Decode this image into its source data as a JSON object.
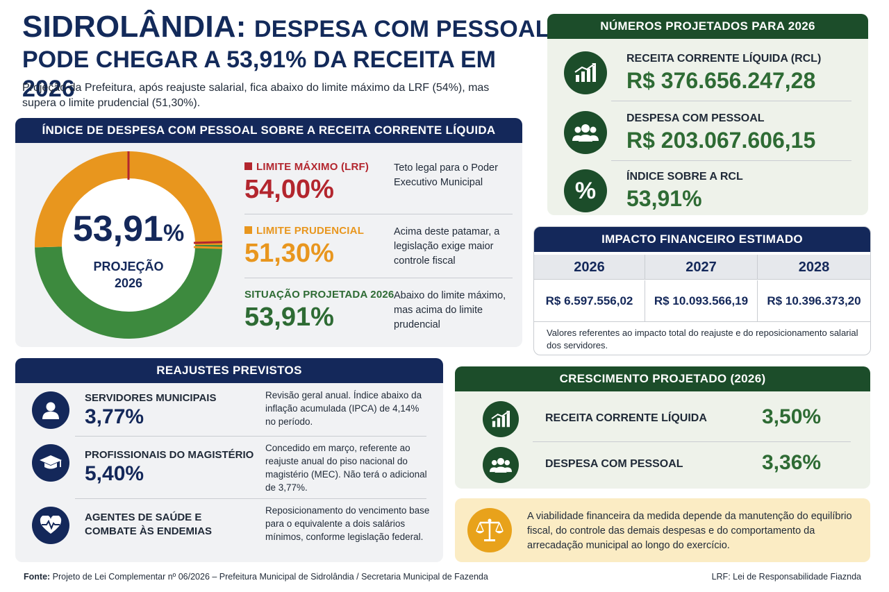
{
  "headline": {
    "city": "SIDROLÂNDIA:",
    "line1_rest": "DESPESA COM PESSOAL",
    "line2": "PODE CHEGAR A 53,91% DA RECEITA EM 2026"
  },
  "subtitle": "Projeção da Prefeitura, após reajuste salarial, fica abaixo do limite máximo da LRF (54%), mas supera o limite prudencial (51,30%).",
  "index_panel": {
    "title": "ÍNDICE DE DESPESA COM PESSOAL SOBRE A RECEITA CORRENTE LÍQUIDA",
    "donut": {
      "value": "53,91",
      "pct_sign": "%",
      "label_line1": "PROJEÇÃO",
      "label_line2": "2026",
      "projection_fraction": 0.5391,
      "prudential_fraction": 0.513,
      "max_fraction": 0.54
    },
    "limits": [
      {
        "name": "LIMITE MÁXIMO (LRF)",
        "value": "54,00%",
        "desc": "Teto legal para o Poder Executivo Municipal",
        "color": "#b3262e"
      },
      {
        "name": "LIMITE PRUDENCIAL",
        "value": "51,30%",
        "desc": "Acima deste patamar, a legislação exige maior controle fiscal",
        "color": "#e8961e"
      },
      {
        "name": "SITUAÇÃO PROJETADA 2026",
        "value": "53,91%",
        "desc": "Abaixo do limite máximo, mas acima do limite prudencial",
        "color": "#2e6b34"
      }
    ]
  },
  "projected": {
    "title": "NÚMEROS PROJETADOS PARA 2026",
    "items": [
      {
        "name": "RECEITA CORRENTE LÍQUIDA (RCL)",
        "value": "R$ 376.656.247,28",
        "icon": "chart-up-icon"
      },
      {
        "name": "DESPESA COM PESSOAL",
        "value": "R$ 203.067.606,15",
        "icon": "people-icon"
      },
      {
        "name": "ÍNDICE SOBRE A RCL",
        "value": "53,91%",
        "icon": "percent-icon",
        "glyph": "%"
      }
    ]
  },
  "impact": {
    "title": "IMPACTO FINANCEIRO ESTIMADO",
    "years": [
      "2026",
      "2027",
      "2028"
    ],
    "amounts": [
      "R$ 6.597.556,02",
      "R$ 10.093.566,19",
      "R$ 10.396.373,20"
    ],
    "note": "Valores referentes ao impacto total do reajuste e do reposicionamento salarial dos servidores."
  },
  "reajustes": {
    "title": "REAJUSTES PREVISTOS",
    "items": [
      {
        "name": "SERVIDORES MUNICIPAIS",
        "value": "3,77%",
        "desc": "Revisão geral anual. Índice abaixo da inflação acumulada (IPCA) de 4,14% no período.",
        "icon": "person-icon"
      },
      {
        "name": "PROFISSIONAIS DO MAGISTÉRIO",
        "value": "5,40%",
        "desc": "Concedido em março, referente ao reajuste anual do piso nacional do magistério (MEC). Não terá o adicional de 3,77%.",
        "icon": "graduation-cap-icon"
      },
      {
        "name_line1": "AGENTES DE SAÚDE E",
        "name_line2": "COMBATE ÀS ENDEMIAS",
        "desc": "Reposicionamento do vencimento base para o equivalente a dois salários mínimos, conforme legislação federal.",
        "icon": "heart-pulse-icon"
      }
    ]
  },
  "crescimento": {
    "title": "CRESCIMENTO PROJETADO (2026)",
    "items": [
      {
        "name": "RECEITA CORRENTE LÍQUIDA",
        "value": "3,50%",
        "icon": "chart-up-icon"
      },
      {
        "name": "DESPESA COM PESSOAL",
        "value": "3,36%",
        "icon": "people-icon"
      }
    ]
  },
  "note": {
    "text": "A viabilidade financeira da medida depende da manutenção do equilíbrio fiscal, do controle das demais despesas e do comportamento da arrecadação municipal ao longo do exercício.",
    "icon": "scales-icon"
  },
  "footer": {
    "source_label": "Fonte:",
    "source_text": "Projeto de Lei Complementar nº 06/2026 – Prefeitura Municipal de Sidrolândia / Secretaria Municipal de Fazenda",
    "lrf": "LRF: Lei de Responsabilidade Fiaznda"
  },
  "colors": {
    "navy": "#14285a",
    "green_dark": "#1c4d2a",
    "green": "#2e6b34",
    "orange": "#e8961e",
    "red": "#b3262e",
    "donut_green": "#3d8a3e",
    "donut_orange": "#e8961e"
  }
}
